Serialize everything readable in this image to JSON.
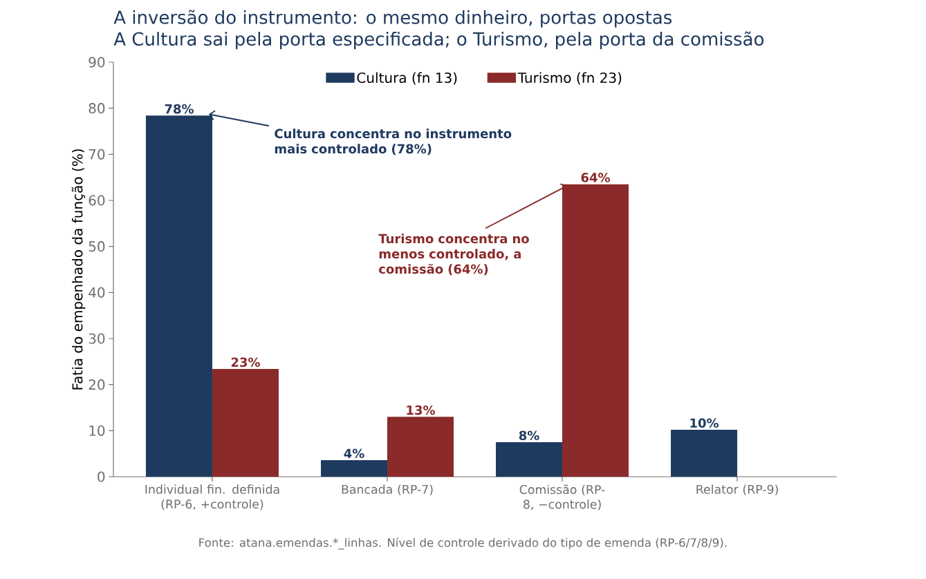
{
  "chart_data": {
    "type": "bar",
    "title": "A inversão do instrumento: o mesmo dinheiro, portas opostas",
    "subtitle": "A Cultura sai pela porta especificada; o Turismo, pela porta da comissão",
    "ylabel": "Fatia do empenhado da função (%)",
    "categories": [
      "Individual fin. definida (RP-6, +controle)",
      "Bancada (RP-7)",
      "Comissão (RP-8, −controle)",
      "Relator (RP-9)"
    ],
    "series": [
      {
        "name": "Cultura (fn 13)",
        "color": "#1f3a5f",
        "values": [
          78.4,
          3.6,
          7.5,
          10.2
        ],
        "value_labels": [
          "78%",
          "4%",
          "8%",
          "10%"
        ]
      },
      {
        "name": "Turismo (fn 23)",
        "color": "#8b2a2a",
        "values": [
          23.4,
          13.0,
          63.5,
          null
        ],
        "value_labels": [
          "23%",
          "13%",
          "64%",
          null
        ]
      }
    ],
    "ylim": [
      0,
      90
    ],
    "yticks": [
      0,
      10,
      20,
      30,
      40,
      50,
      60,
      70,
      80,
      90
    ],
    "legend": "top",
    "grid": false,
    "annotations": [
      {
        "text": "Cultura concentra no instrumento mais controlado (78%)",
        "x": "Individual fin. definida (RP-6, +controle)",
        "y": 78.4
      },
      {
        "text": "Turismo concentra no menos controlado, a comissão (64%)",
        "x": "Comissão (RP-8, −controle)",
        "y": 63.5
      },
      "Fonte: atana.emendas.*_linhas. Nível de controle derivado do tipo de emenda (RP-6/7/8/9)."
    ]
  }
}
